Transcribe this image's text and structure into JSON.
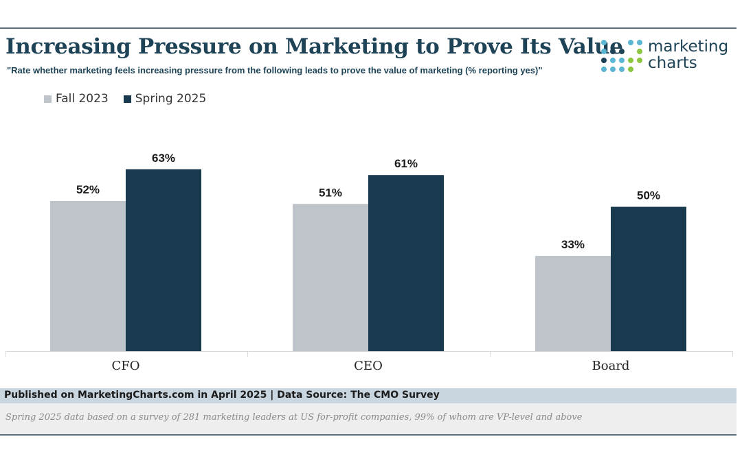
{
  "header": {
    "title": "Increasing Pressure on Marketing to Prove Its Value",
    "subtitle": "\"Rate whether marketing feels increasing pressure from the following leads to prove the value of marketing (% reporting yes)\""
  },
  "logo": {
    "line1": "marketing",
    "line2": "charts",
    "icon": "dot-grid-icon",
    "colors": [
      "#5bb6d4",
      "#1e4356",
      "#8cc63f"
    ]
  },
  "chart_data": {
    "type": "bar",
    "categories": [
      "CFO",
      "CEO",
      "Board"
    ],
    "series": [
      {
        "name": "Fall 2023",
        "values": [
          52,
          51,
          33
        ],
        "labels": [
          "52%",
          "51%",
          "33%"
        ],
        "color": "#bfc3ca"
      },
      {
        "name": "Spring 2025",
        "values": [
          63,
          61,
          50
        ],
        "labels": [
          "63%",
          "61%",
          "50%"
        ],
        "color": "#193a4e"
      }
    ],
    "ylim": [
      0,
      70
    ],
    "unit": "%",
    "grid": false,
    "legend_position": "top-left"
  },
  "footer": {
    "source": "Published on MarketingCharts.com in April 2025 | Data Source: The CMO Survey",
    "note": "Spring 2025 data based on a survey of 281 marketing leaders at US for-profit companies, 99% of whom are VP-level and above"
  }
}
